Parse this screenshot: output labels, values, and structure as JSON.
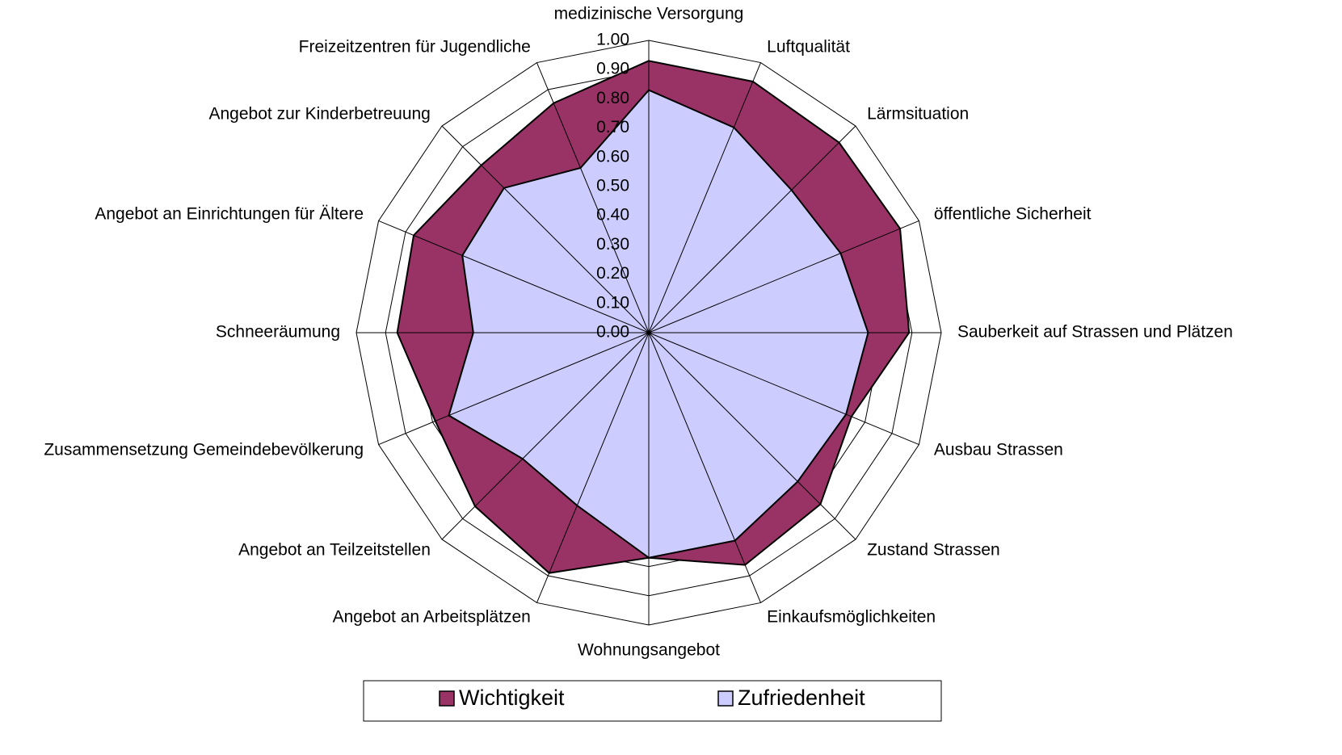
{
  "chart_data": {
    "type": "radar",
    "categories": [
      "medizinische Versorgung",
      "Luftqualität",
      "Lärmsituation",
      "öffentliche Sicherheit",
      "Sauberkeit auf Strassen und Plätzen",
      "Ausbau Strassen",
      "Zustand Strassen",
      "Einkaufsmöglichkeiten",
      "Wohnungsangebot",
      "Angebot an Arbeitsplätzen",
      "Angebot an Teilzeitstellen",
      "Zusammensetzung Gemeindebevölkerung",
      "Schneeräumung",
      "Angebot an Einrichtungen für Ältere",
      "Angebot zur Kinderbetreuung",
      "Freizeitzentren für Jugendliche"
    ],
    "series": [
      {
        "name": "Wichtigkeit",
        "color": "#993366",
        "values": [
          0.93,
          0.93,
          0.92,
          0.93,
          0.89,
          0.75,
          0.83,
          0.86,
          0.77,
          0.89,
          0.84,
          0.79,
          0.86,
          0.87,
          0.81,
          0.85
        ]
      },
      {
        "name": "Zufriedenheit",
        "color": "#ccccff",
        "values": [
          0.83,
          0.76,
          0.69,
          0.71,
          0.75,
          0.73,
          0.72,
          0.77,
          0.77,
          0.64,
          0.61,
          0.74,
          0.6,
          0.69,
          0.7,
          0.61
        ]
      }
    ],
    "ylim": [
      0,
      1
    ],
    "yticks": [
      {
        "value": 0,
        "label": "0.00"
      },
      {
        "value": 0.1,
        "label": "0.10"
      },
      {
        "value": 0.2,
        "label": "0.20"
      },
      {
        "value": 0.3,
        "label": "0.30"
      },
      {
        "value": 0.4,
        "label": "0.40"
      },
      {
        "value": 0.5,
        "label": "0.50"
      },
      {
        "value": 0.6,
        "label": "0.60"
      },
      {
        "value": 0.7,
        "label": "0.70"
      },
      {
        "value": 0.8,
        "label": "0.80"
      },
      {
        "value": 0.9,
        "label": "0.90"
      },
      {
        "value": 1,
        "label": "1.00"
      }
    ],
    "grid": true,
    "legend": "bottom"
  }
}
